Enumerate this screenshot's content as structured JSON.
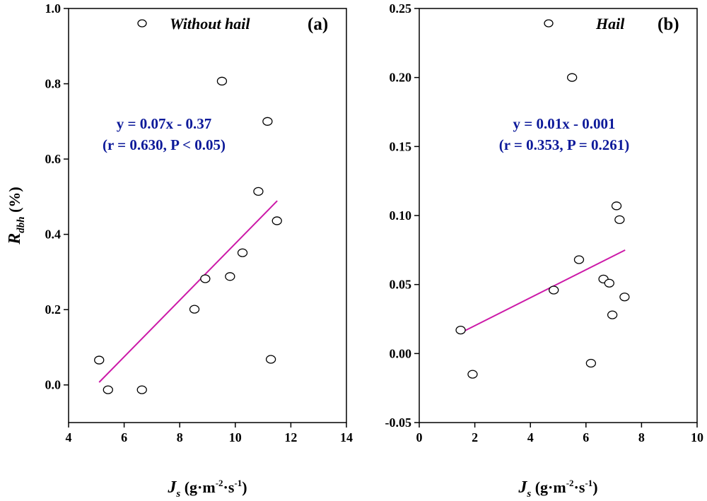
{
  "chart_data": [
    {
      "type": "scatter",
      "panel_label": "(a)",
      "legend": "Without hail",
      "legend_placement": "top",
      "xlabel": {
        "main": "J",
        "sub": "s",
        "unit_a": " (g·m",
        "sup1": "-2",
        "unit_b": "·s",
        "sup2": "-1",
        "unit_c": ")"
      },
      "ylabel": {
        "main": "R",
        "sub": "dbh",
        "unit": " (%)"
      },
      "xlim": [
        4,
        14
      ],
      "ylim": [
        -0.1,
        1.0
      ],
      "xticks": [
        "4",
        "6",
        "8",
        "10",
        "12",
        "14"
      ],
      "xtick_values": [
        4,
        6,
        8,
        10,
        12,
        14
      ],
      "yticks": [
        "0.0",
        "0.2",
        "0.4",
        "0.6",
        "0.8",
        "1.0"
      ],
      "ytick_values": [
        0.0,
        0.2,
        0.4,
        0.6,
        0.8,
        1.0
      ],
      "points": [
        [
          9.52,
          0.807
        ],
        [
          11.16,
          0.7
        ],
        [
          10.83,
          0.514
        ],
        [
          11.5,
          0.436
        ],
        [
          10.26,
          0.351
        ],
        [
          9.81,
          0.288
        ],
        [
          8.92,
          0.282
        ],
        [
          8.53,
          0.201
        ],
        [
          11.28,
          0.068
        ],
        [
          5.1,
          0.066
        ],
        [
          5.42,
          -0.013
        ],
        [
          6.64,
          -0.013
        ]
      ],
      "fit_line": [
        [
          5.1,
          0.007
        ],
        [
          11.51,
          0.489
        ]
      ],
      "equation": "y = 0.07x - 0.37",
      "stats": "(r = 0.630, P < 0.05)",
      "colors": {
        "points": "#000000",
        "fit": "#cc1aa8",
        "annotation": "#0d1a9a"
      }
    },
    {
      "type": "scatter",
      "panel_label": "(b)",
      "legend": "Hail",
      "legend_placement": "top",
      "xlabel": {
        "main": "J",
        "sub": "s",
        "unit_a": " (g·m",
        "sup1": "-2",
        "unit_b": "·s",
        "sup2": "-1",
        "unit_c": ")"
      },
      "xlim": [
        0,
        10
      ],
      "ylim": [
        -0.05,
        0.25
      ],
      "xticks": [
        "0",
        "2",
        "4",
        "6",
        "8",
        "10"
      ],
      "xtick_values": [
        0,
        2,
        4,
        6,
        8,
        10
      ],
      "yticks": [
        "-0.05",
        "0.00",
        "0.05",
        "0.10",
        "0.15",
        "0.20",
        "0.25"
      ],
      "ytick_values": [
        -0.05,
        0.0,
        0.05,
        0.1,
        0.15,
        0.2,
        0.25
      ],
      "points": [
        [
          5.5,
          0.2
        ],
        [
          7.1,
          0.107
        ],
        [
          7.21,
          0.097
        ],
        [
          5.75,
          0.068
        ],
        [
          6.63,
          0.054
        ],
        [
          6.84,
          0.051
        ],
        [
          4.84,
          0.046
        ],
        [
          7.39,
          0.041
        ],
        [
          6.95,
          0.028
        ],
        [
          1.49,
          0.017
        ],
        [
          1.92,
          -0.015
        ],
        [
          6.18,
          -0.007
        ]
      ],
      "fit_line": [
        [
          1.49,
          0.015
        ],
        [
          7.41,
          0.075
        ]
      ],
      "equation": "y = 0.01x - 0.001",
      "stats": "(r = 0.353, P = 0.261)",
      "colors": {
        "points": "#000000",
        "fit": "#cc1aa8",
        "annotation": "#0d1a9a"
      }
    }
  ]
}
